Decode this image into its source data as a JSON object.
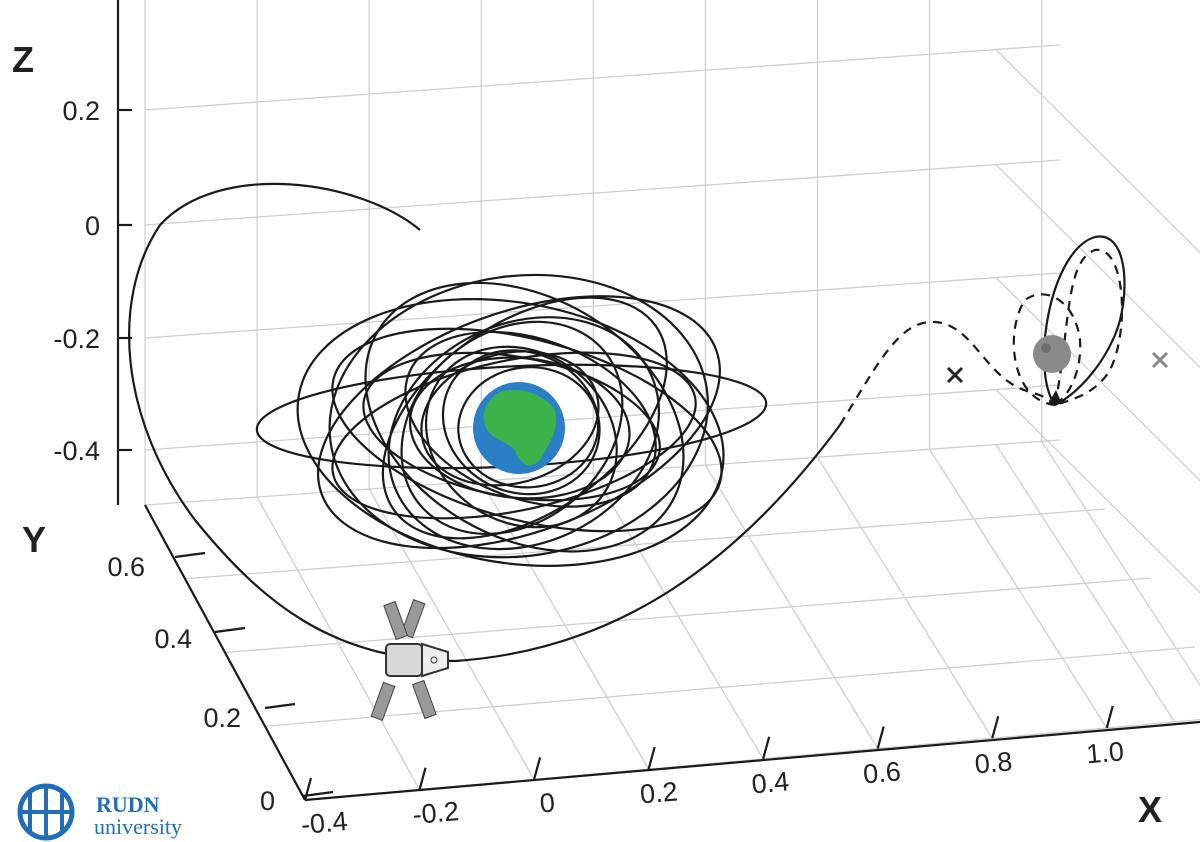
{
  "axes": {
    "z": {
      "label": "Z",
      "ticks": [
        "0.2",
        "0",
        "-0.2",
        "-0.4"
      ]
    },
    "y": {
      "label": "Y",
      "ticks": [
        "0.6",
        "0.4",
        "0.2",
        "0"
      ]
    },
    "x": {
      "label": "X",
      "ticks": [
        "-0.4",
        "-0.2",
        "0",
        "0.2",
        "0.4",
        "0.6",
        "0.8",
        "1.0"
      ]
    }
  },
  "logo": {
    "name": "RUDN",
    "subtitle": "university"
  }
}
